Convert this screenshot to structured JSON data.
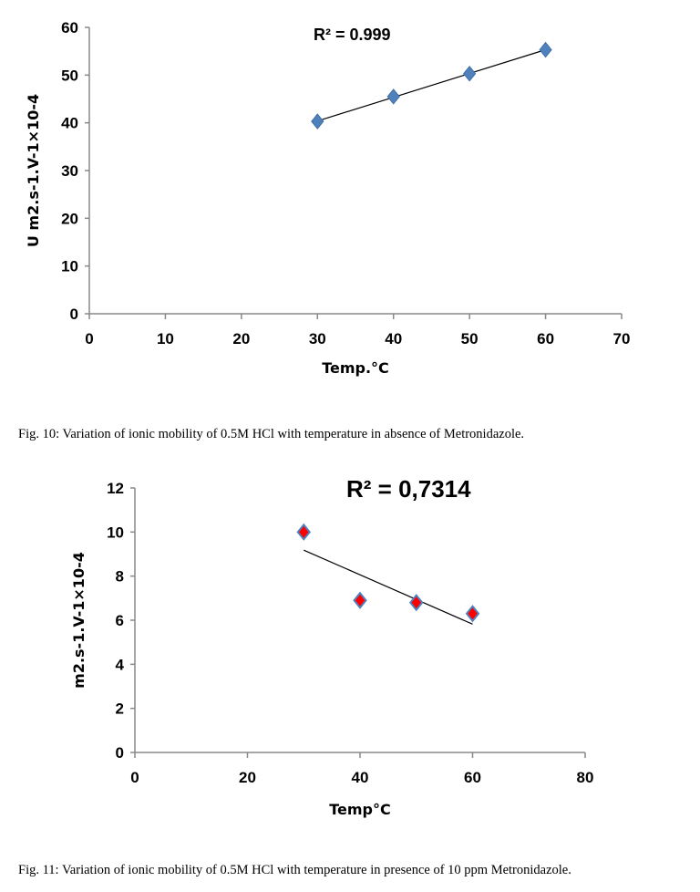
{
  "chart_data": [
    {
      "type": "scatter",
      "title": "",
      "xlabel": "Temp.°C",
      "ylabel": "U m2.s-1.V-1×10-4",
      "xlim": [
        0,
        70
      ],
      "ylim": [
        0,
        60
      ],
      "xticks": [
        0,
        10,
        20,
        30,
        40,
        50,
        60,
        70
      ],
      "yticks": [
        0,
        10,
        20,
        30,
        40,
        50,
        60
      ],
      "x": [
        30,
        40,
        50,
        60
      ],
      "y": [
        40.3,
        45.5,
        50.3,
        55.3
      ],
      "marker_color": "#4f81bd",
      "trendline": "linear",
      "annotation": "R² = 0.999",
      "grid": false,
      "caption": "Fig. 10: Variation of ionic mobility of 0.5M HCl with temperature in absence of Metronidazole."
    },
    {
      "type": "scatter",
      "title": "",
      "xlabel": "Temp°C",
      "ylabel": "m2.s-1.V-1×10-4",
      "xlim": [
        0,
        80
      ],
      "ylim": [
        0,
        12
      ],
      "xticks": [
        0,
        20,
        40,
        60,
        80
      ],
      "yticks": [
        0,
        2,
        4,
        6,
        8,
        10,
        12
      ],
      "x": [
        30,
        40,
        50,
        60
      ],
      "y": [
        10.0,
        6.9,
        6.8,
        6.3
      ],
      "marker_color": "#ff0000",
      "marker_edge": "#4f81bd",
      "trendline": "linear",
      "annotation": "R² = 0,7314",
      "grid": false,
      "caption": "Fig. 11: Variation of ionic mobility of 0.5M HCl with temperature in presence of 10 ppm Metronidazole."
    }
  ]
}
